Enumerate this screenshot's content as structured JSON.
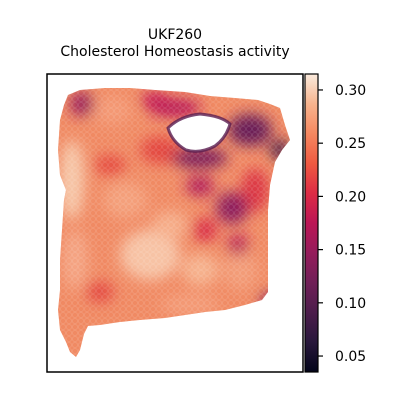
{
  "chart_data": {
    "type": "heatmap",
    "title": "UKF260",
    "subtitle": "Cholesterol Homeostasis activity",
    "xlabel": "",
    "ylabel": "",
    "colormap": "rocket",
    "colorbar": {
      "range": [
        0.035,
        0.315
      ],
      "ticks": [
        0.05,
        0.1,
        0.15,
        0.2,
        0.25,
        0.3
      ],
      "tick_labels": [
        "0.05",
        "0.10",
        "0.15",
        "0.20",
        "0.25",
        "0.30"
      ]
    },
    "grid": false,
    "low_activity_regions": [
      "upper-center hole rim",
      "right-center",
      "upper-left corner"
    ],
    "high_activity_regions": [
      "left strip",
      "center",
      "lower-center"
    ]
  }
}
